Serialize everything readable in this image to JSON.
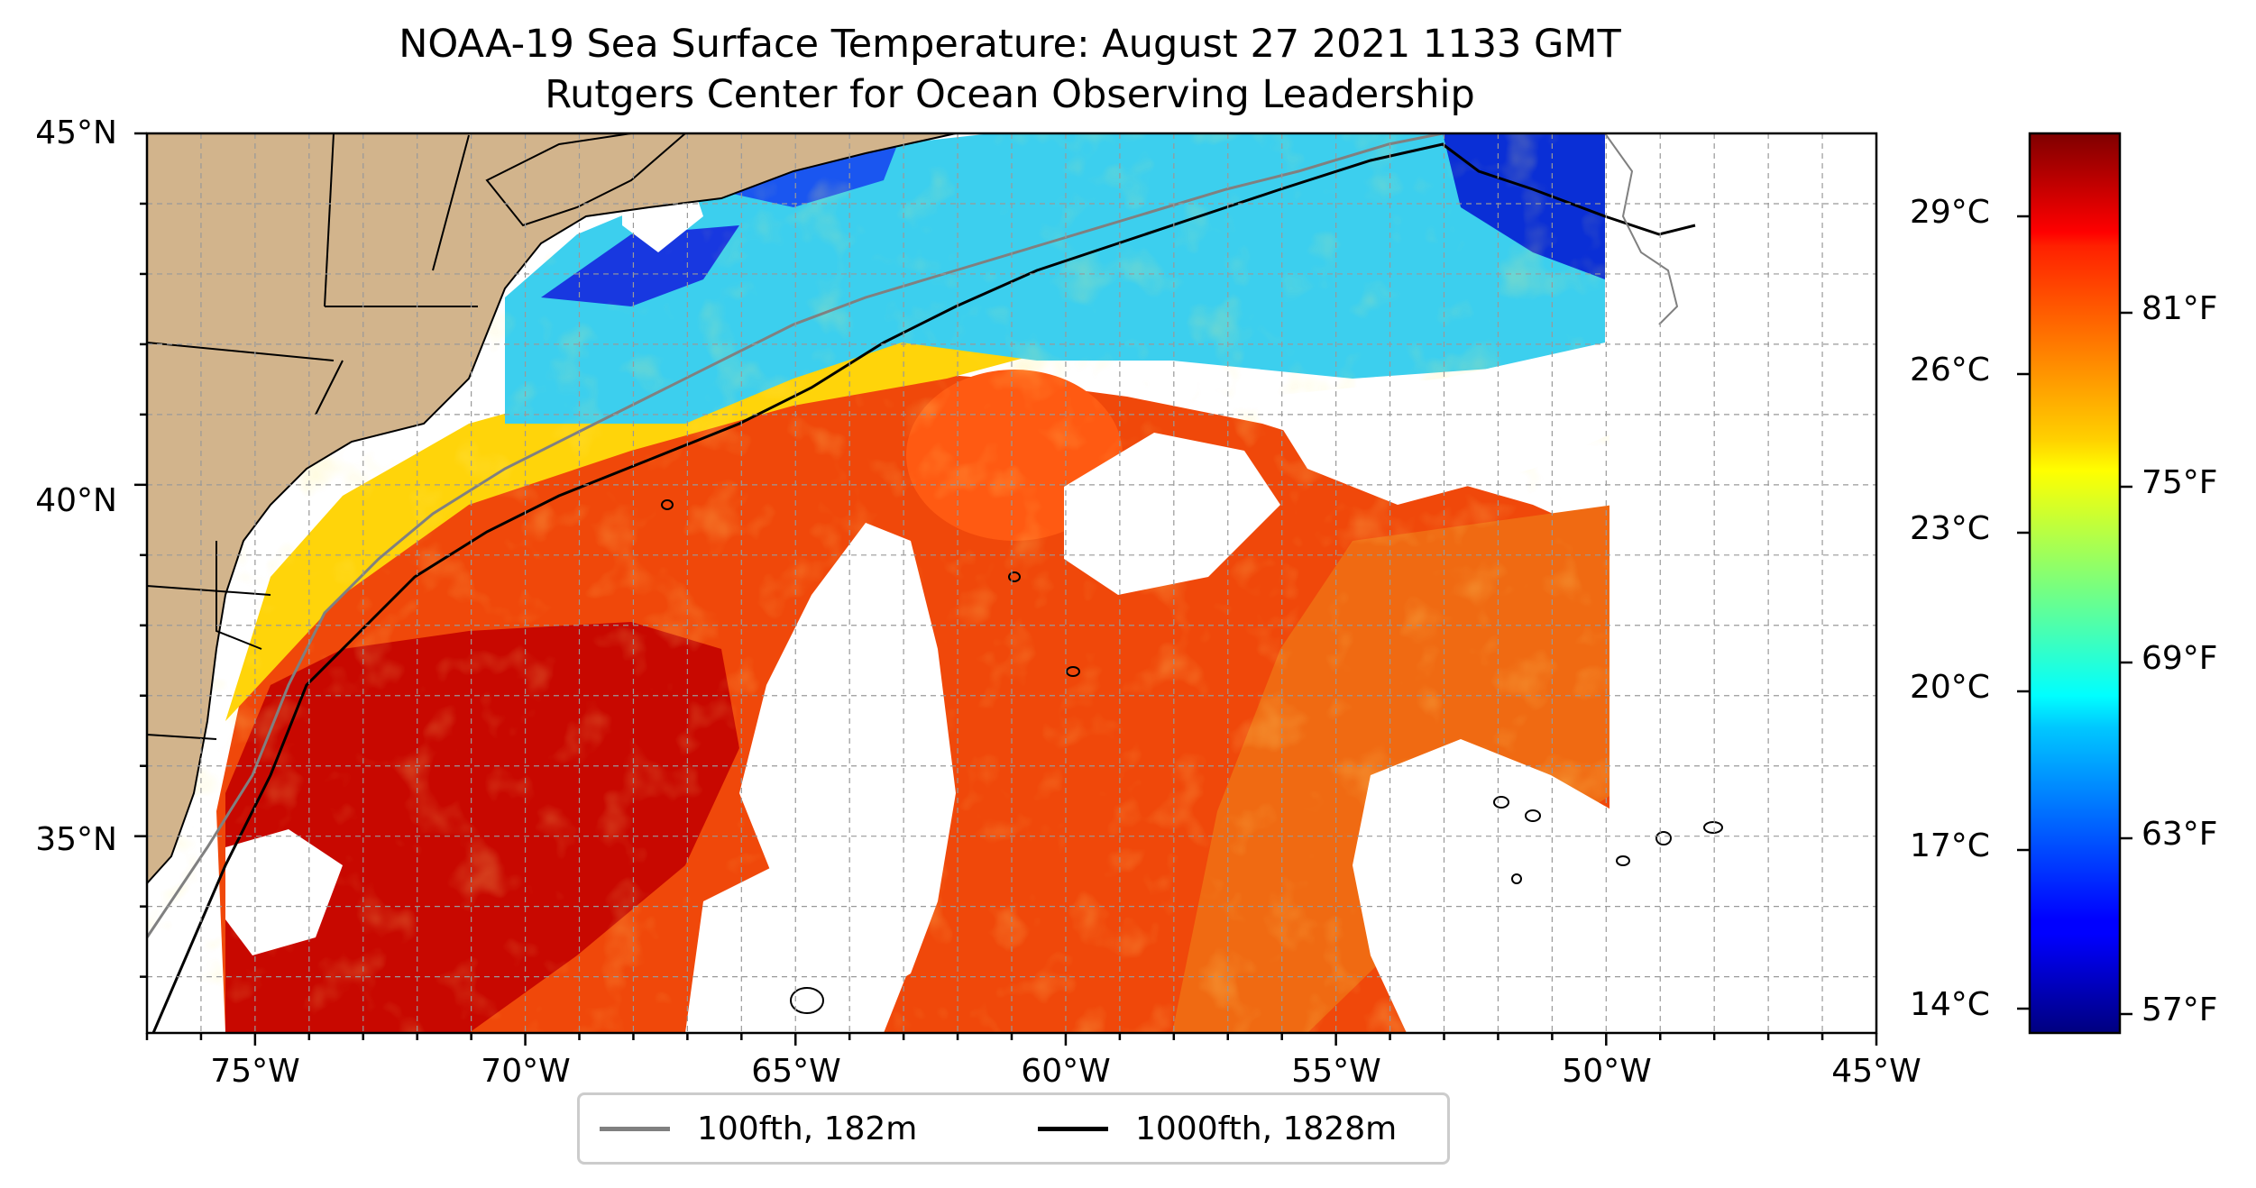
{
  "title": {
    "line1": "NOAA-19 Sea Surface Temperature: August 27 2021 1133 GMT",
    "line2": "Rutgers Center for Ocean Observing Leadership"
  },
  "map": {
    "lon_range": [
      -77,
      -45
    ],
    "lat_range": [
      32.2,
      45
    ],
    "lat_ticks": [
      "45°N",
      "40°N",
      "35°N"
    ],
    "lon_ticks": [
      "75°W",
      "70°W",
      "65°W",
      "60°W",
      "55°W",
      "50°W",
      "45°W"
    ],
    "gridlines": true,
    "colors": {
      "land": "#d2b48c",
      "no_data": "#ffffff",
      "warm": "#e03a00",
      "hot": "#c20000",
      "cool": "#1ec8f0",
      "cold": "#0b2fd8",
      "shelf_contour": "#808080",
      "slope_contour": "#000000"
    }
  },
  "colorbar": {
    "celsius_ticks": [
      "29°C",
      "26°C",
      "23°C",
      "20°C",
      "17°C",
      "14°C"
    ],
    "fahrenheit_ticks": [
      "81°F",
      "75°F",
      "69°F",
      "63°F",
      "57°F"
    ],
    "colormap": "jet"
  },
  "legend": {
    "items": [
      {
        "label": "100fth, 182m",
        "color": "#808080"
      },
      {
        "label": "1000fth, 1828m",
        "color": "#000000"
      }
    ]
  }
}
